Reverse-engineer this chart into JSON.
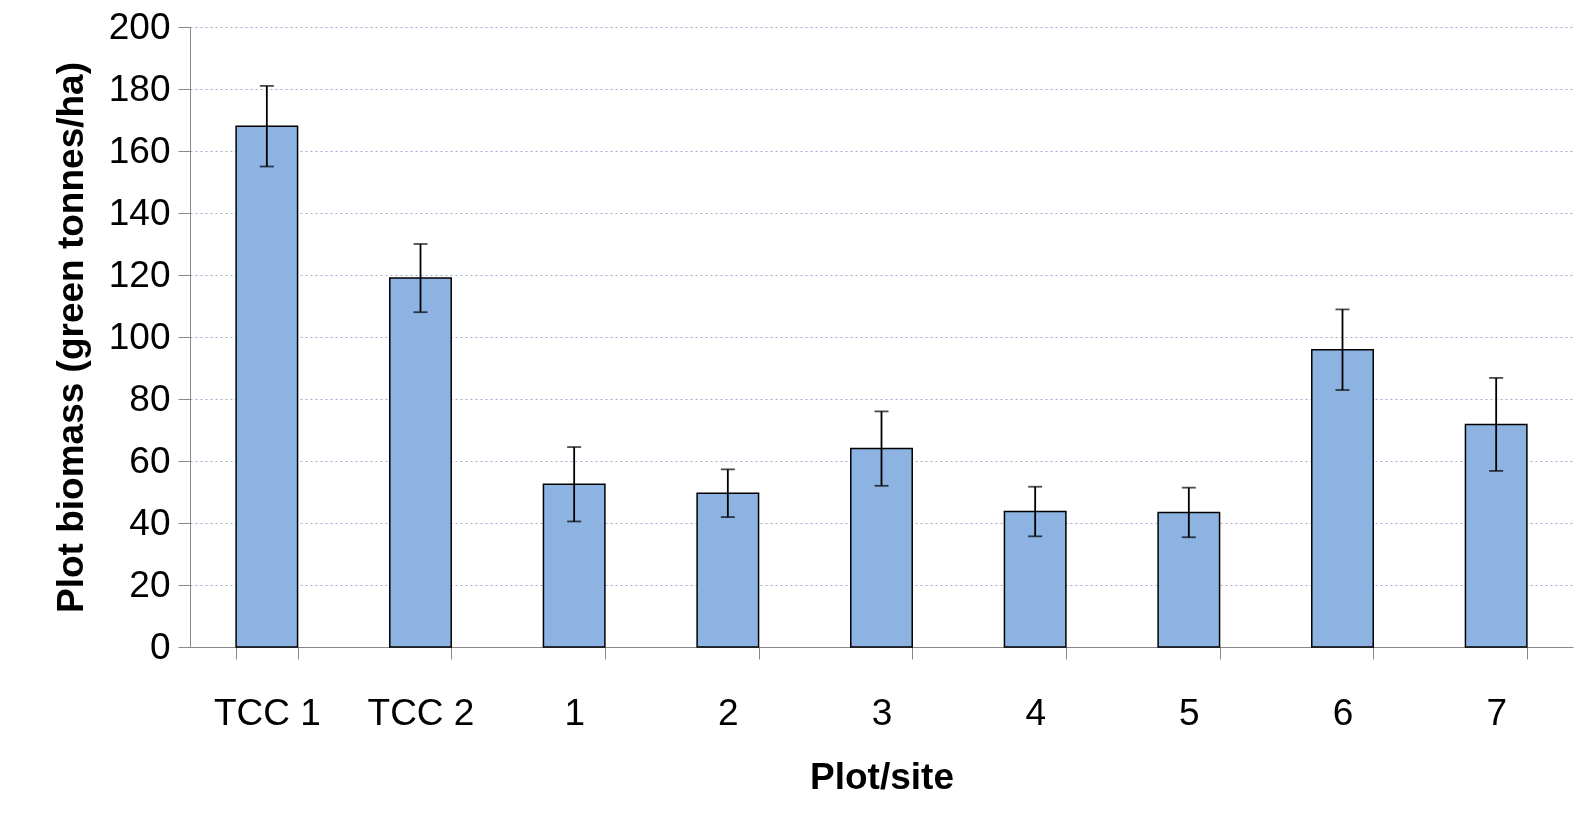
{
  "chart_data": {
    "type": "bar",
    "xlabel": "Plot/site",
    "ylabel": "Plot biomass (green tonnes/ha)",
    "categories": [
      "TCC 1",
      "TCC 2",
      "1",
      "2",
      "3",
      "4",
      "5",
      "6",
      "7"
    ],
    "values": [
      168,
      119,
      52.5,
      49.6,
      64,
      43.7,
      43.4,
      95.9,
      71.8
    ],
    "errors": [
      13,
      11,
      12,
      7.7,
      12,
      8,
      8,
      13,
      15
    ],
    "color": "#8db3e2",
    "ylim": [
      0,
      200
    ],
    "yticks": [
      0,
      20,
      40,
      60,
      80,
      100,
      120,
      140,
      160,
      180,
      200
    ],
    "grid": "y"
  }
}
